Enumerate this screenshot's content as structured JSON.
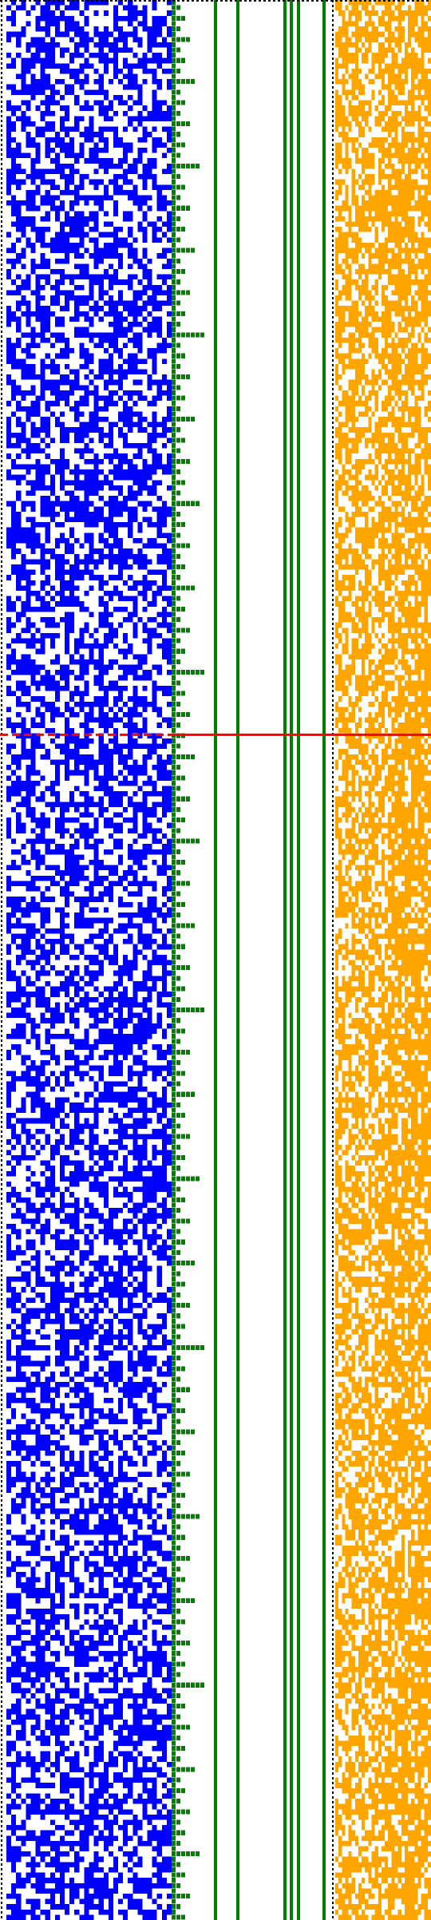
{
  "visualization": {
    "kind": "bit-pattern raster",
    "background": "#ffffff",
    "row_count": 364,
    "marker_row": 139,
    "random_seed_note": "",
    "panels": [
      {
        "name": "blue-random-bits",
        "color": "#0000ff",
        "cols": 34,
        "fill_density": 0.55
      },
      {
        "name": "green-staircase",
        "color": "#008000",
        "steps": 6
      },
      {
        "name": "green-vertical-bars",
        "color": "#008000",
        "bar_count": 6
      },
      {
        "name": "orange-random-bits",
        "color": "#ffa500",
        "cols": 29,
        "fill_density": 0.62
      }
    ],
    "frame": {
      "style": "dotted",
      "color": "#000000"
    },
    "marker_line": {
      "color": "#ff0000",
      "style": "dashed-then-solid"
    }
  }
}
